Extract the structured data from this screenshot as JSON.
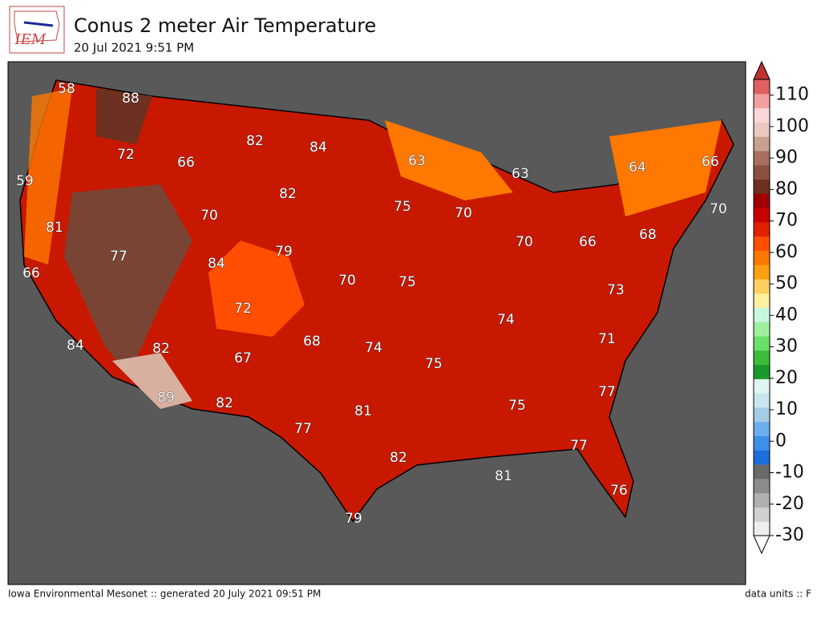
{
  "header": {
    "logo": "IEM",
    "title": "Conus 2 meter Air Temperature",
    "subtitle": "20 Jul 2021 9:51 PM"
  },
  "map": {
    "temperatures": [
      58,
      88,
      82,
      84,
      72,
      66,
      59,
      82,
      63,
      63,
      64,
      66,
      75,
      70,
      70,
      70,
      81,
      68,
      66,
      70,
      79,
      77,
      84,
      66,
      70,
      75,
      73,
      72,
      74,
      68,
      71,
      84,
      82,
      74,
      67,
      75,
      77,
      89,
      82,
      81,
      75,
      77,
      77,
      82,
      81,
      76,
      79
    ]
  },
  "colorbar": {
    "clim": [
      -30,
      115
    ],
    "ticks": [
      -30,
      -20,
      -10,
      0,
      10,
      20,
      30,
      40,
      50,
      60,
      70,
      80,
      90,
      100,
      110
    ],
    "colors": [
      "#eeeeee",
      "#d0d0d0",
      "#b0b0b0",
      "#8c8c8c",
      "#6a6a6a",
      "#1c6fd8",
      "#3f8ee8",
      "#6aaef0",
      "#a4cce6",
      "#c8e6ee",
      "#e0f5f2",
      "#1a9a2a",
      "#3bbd3b",
      "#6ae06a",
      "#9ef09e",
      "#c8f8dc",
      "#fff0a0",
      "#ffd060",
      "#ffa010",
      "#ff7800",
      "#ff4e00",
      "#e02000",
      "#c80000",
      "#a00000",
      "#6e3020",
      "#8c5040",
      "#a87060",
      "#c8a090",
      "#e8c8c0",
      "#f8d8d8",
      "#f0a0a0",
      "#e06060"
    ],
    "arrow_colors": [
      "#ffffff",
      "#c03030"
    ]
  },
  "footer": {
    "left": "Iowa Environmental Mesonet :: generated 20 July 2021 09:51 PM",
    "right": "data units :: F"
  }
}
